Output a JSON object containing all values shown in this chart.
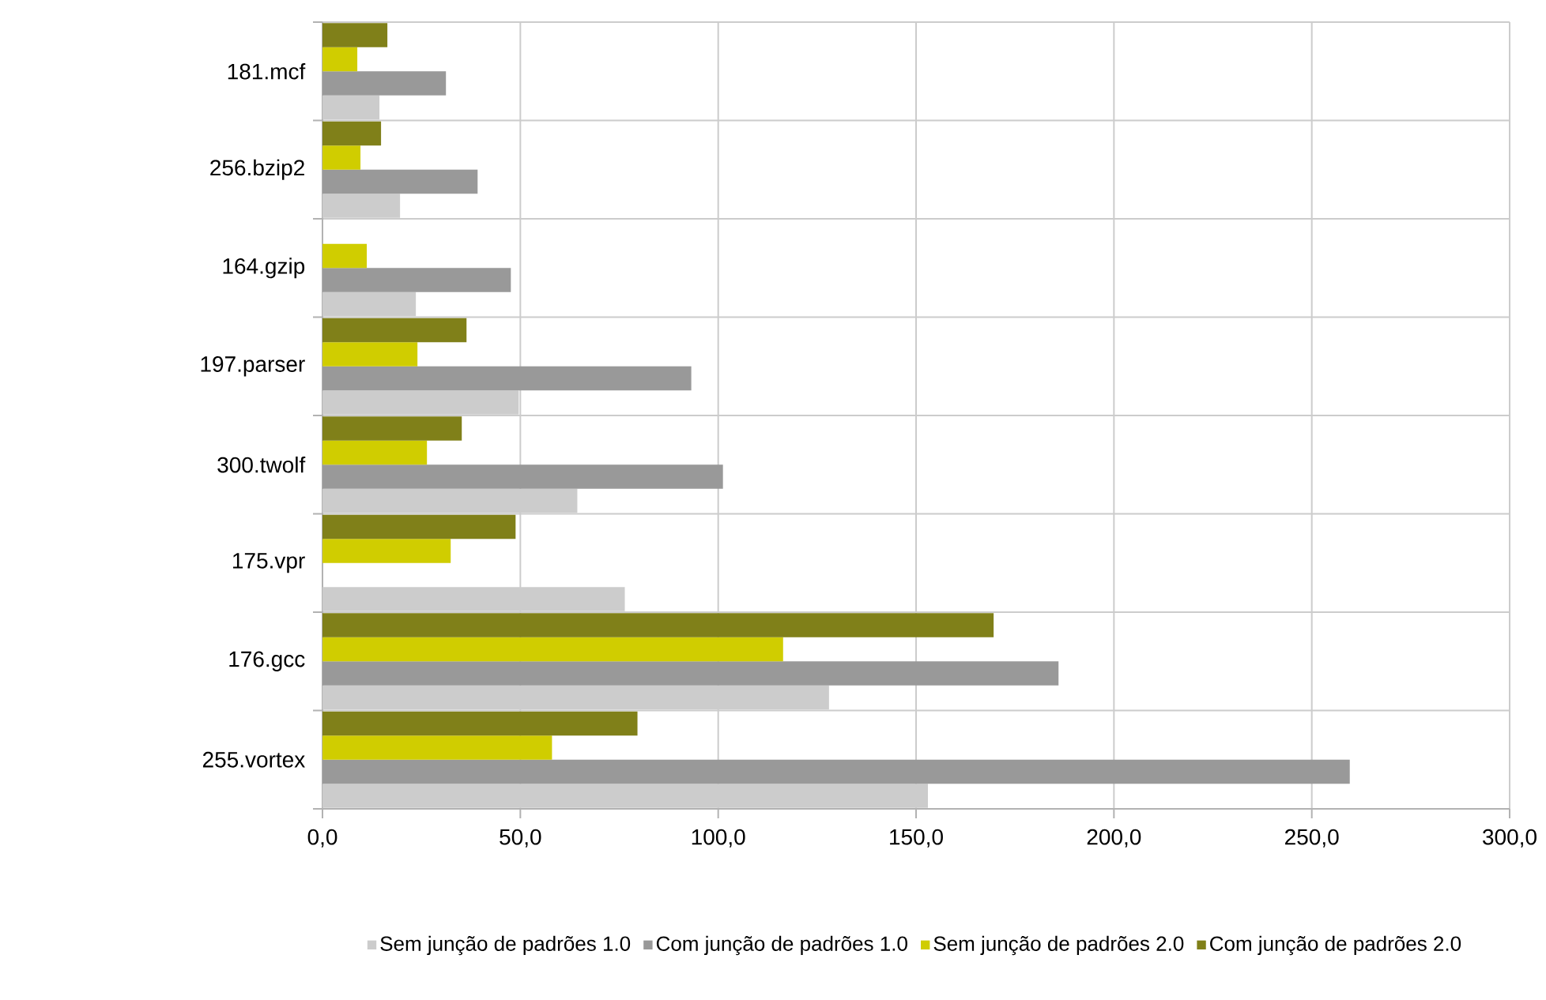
{
  "chart_data": {
    "type": "bar",
    "orientation": "horizontal",
    "categories": [
      "181.mcf",
      "256.bzip2",
      "164.gzip",
      "197.parser",
      "300.twolf",
      "175.vpr",
      "176.gcc",
      "255.vortex"
    ],
    "series": [
      {
        "name": "Sem junção de padrões 1.0",
        "color": "#cccccc",
        "values": [
          14.4,
          19.6,
          23.6,
          49.6,
          64.4,
          76.4,
          128,
          153
        ]
      },
      {
        "name": "Com junção de padrões 1.0",
        "color": "#999999",
        "values": [
          31.2,
          39.2,
          47.6,
          93.2,
          101.2,
          null,
          186,
          259.6
        ]
      },
      {
        "name": "Sem junção de padrões 2.0",
        "color": "#d0cd00",
        "values": [
          8.8,
          9.6,
          11.2,
          24,
          26.4,
          32.4,
          116.4,
          58
        ]
      },
      {
        "name": "Com junção de padrões 2.0",
        "color": "#808019",
        "values": [
          16.4,
          14.8,
          null,
          36.4,
          35.2,
          48.8,
          169.6,
          79.6
        ]
      }
    ],
    "xlim": [
      0,
      300
    ],
    "xticks": [
      {
        "value": 0,
        "label": "0,0"
      },
      {
        "value": 50,
        "label": "50,0"
      },
      {
        "value": 100,
        "label": "100,0"
      },
      {
        "value": 150,
        "label": "150,0"
      },
      {
        "value": 200,
        "label": "200,0"
      },
      {
        "value": 250,
        "label": "250,0"
      },
      {
        "value": 300,
        "label": "300,0"
      }
    ],
    "grid": true,
    "legend": "bottom"
  }
}
